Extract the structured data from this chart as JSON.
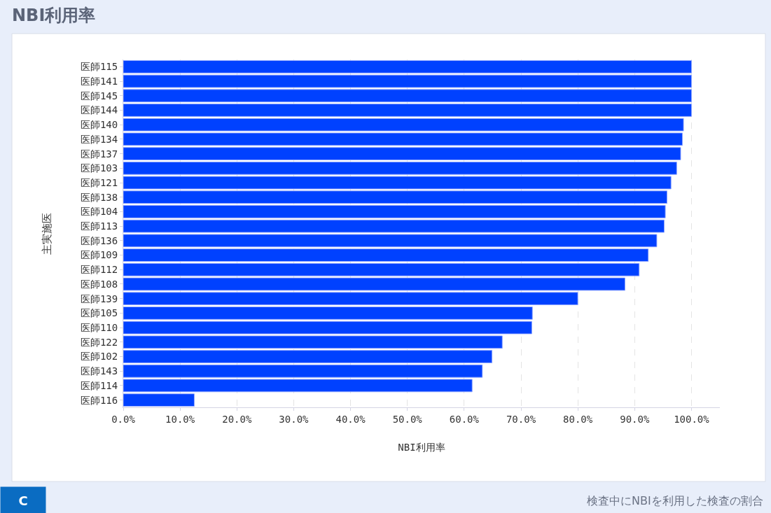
{
  "chart_data": {
    "type": "bar",
    "orientation": "horizontal",
    "title": "NBI利用率",
    "xlabel": "NBI利用率",
    "ylabel": "主実施医",
    "annotations": [
      "C",
      "検査中にNBIを利用した検査の割合"
    ],
    "categories": [
      "医師115",
      "医師141",
      "医師145",
      "医師144",
      "医師140",
      "医師134",
      "医師137",
      "医師103",
      "医師121",
      "医師138",
      "医師104",
      "医師113",
      "医師136",
      "医師109",
      "医師112",
      "医師108",
      "医師139",
      "医師105",
      "医師110",
      "医師122",
      "医師102",
      "医師143",
      "医師114",
      "医師116"
    ],
    "values": [
      100,
      100,
      100,
      100,
      98.6,
      98.4,
      98.1,
      97.4,
      96.4,
      95.7,
      95.4,
      95.2,
      93.9,
      92.4,
      90.8,
      88.3,
      80.0,
      72.0,
      71.9,
      66.7,
      64.9,
      63.2,
      61.4,
      12.5
    ],
    "color": "#0041ff",
    "xlim": [
      0,
      105
    ],
    "xticks": [
      {
        "value": 0,
        "label": "0.0%"
      },
      {
        "value": 10,
        "label": "10.0%"
      },
      {
        "value": 20,
        "label": "20.0%"
      },
      {
        "value": 30,
        "label": "30.0%"
      },
      {
        "value": 40,
        "label": "40.0%"
      },
      {
        "value": 50,
        "label": "50.0%"
      },
      {
        "value": 60,
        "label": "60.0%"
      },
      {
        "value": 70,
        "label": "70.0%"
      },
      {
        "value": 80,
        "label": "80.0%"
      },
      {
        "value": 90,
        "label": "90.0%"
      },
      {
        "value": 100,
        "label": "100.0%"
      }
    ],
    "grid": "x"
  }
}
